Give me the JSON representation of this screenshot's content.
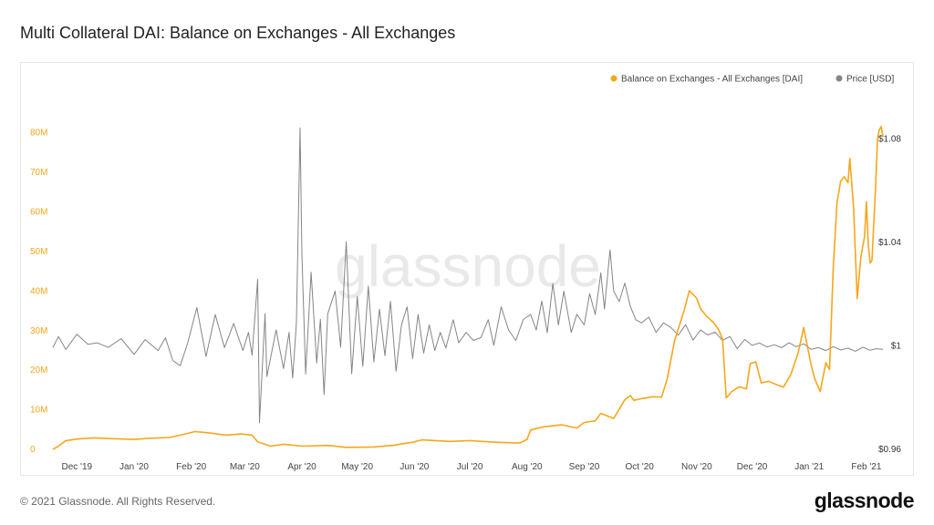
{
  "title": "Multi Collateral DAI: Balance on Exchanges - All Exchanges",
  "footer": {
    "copyright": "© 2021 Glassnode. All Rights Reserved.",
    "logo": "glassnode"
  },
  "watermark": "glassnode",
  "colors": {
    "balance": "#f7a61c",
    "price": "#858585",
    "grid": "#ececec",
    "left_axis": "#f7a61c",
    "right_axis": "#333333"
  },
  "chart_data": {
    "type": "line",
    "title": "Multi Collateral DAI: Balance on Exchanges - All Exchanges",
    "x_ticks": [
      "Dec '19",
      "Jan '20",
      "Feb '20",
      "Mar '20",
      "Apr '20",
      "May '20",
      "Jun '20",
      "Jul '20",
      "Aug '20",
      "Sep '20",
      "Oct '20",
      "Nov '20",
      "Dec '20",
      "Jan '21",
      "Feb '21"
    ],
    "x_range": [
      "2019-11-18",
      "2021-02-05"
    ],
    "left_axis": {
      "ticks": [
        "0",
        "10M",
        "20M",
        "30M",
        "40M",
        "50M",
        "60M",
        "70M",
        "80M"
      ],
      "range": [
        0,
        85000000
      ]
    },
    "right_axis": {
      "ticks": [
        "$0.96",
        "$1",
        "$1.04",
        "$1.08"
      ],
      "range": [
        0.96,
        1.09
      ]
    },
    "grid": false,
    "legend_position": "top-right",
    "series": [
      {
        "name": "Balance on Exchanges - All Exchanges [DAI]",
        "axis": "left",
        "points": [
          [
            "2019-11-18",
            0
          ],
          [
            "2019-11-21",
            800000
          ],
          [
            "2019-11-25",
            2200000
          ],
          [
            "2019-12-01",
            2600000
          ],
          [
            "2019-12-10",
            2900000
          ],
          [
            "2019-12-20",
            2700000
          ],
          [
            "2020-01-01",
            2500000
          ],
          [
            "2020-01-10",
            2800000
          ],
          [
            "2020-01-20",
            3000000
          ],
          [
            "2020-01-28",
            3800000
          ],
          [
            "2020-02-03",
            4500000
          ],
          [
            "2020-02-10",
            4200000
          ],
          [
            "2020-02-20",
            3600000
          ],
          [
            "2020-02-28",
            3900000
          ],
          [
            "2020-03-05",
            3600000
          ],
          [
            "2020-03-08",
            1900000
          ],
          [
            "2020-03-15",
            800000
          ],
          [
            "2020-03-22",
            1300000
          ],
          [
            "2020-04-01",
            800000
          ],
          [
            "2020-04-15",
            1000000
          ],
          [
            "2020-04-25",
            500000
          ],
          [
            "2020-05-10",
            600000
          ],
          [
            "2020-05-20",
            1000000
          ],
          [
            "2020-05-31",
            1800000
          ],
          [
            "2020-06-05",
            2400000
          ],
          [
            "2020-06-20",
            2000000
          ],
          [
            "2020-07-01",
            2200000
          ],
          [
            "2020-07-15",
            1800000
          ],
          [
            "2020-07-28",
            1600000
          ],
          [
            "2020-08-01",
            2500000
          ],
          [
            "2020-08-03",
            4900000
          ],
          [
            "2020-08-10",
            5700000
          ],
          [
            "2020-08-20",
            6200000
          ],
          [
            "2020-08-28",
            5400000
          ],
          [
            "2020-09-01",
            6800000
          ],
          [
            "2020-09-07",
            7200000
          ],
          [
            "2020-09-10",
            9100000
          ],
          [
            "2020-09-17",
            7800000
          ],
          [
            "2020-09-23",
            12500000
          ],
          [
            "2020-09-26",
            13600000
          ],
          [
            "2020-09-28",
            12400000
          ],
          [
            "2020-10-02",
            12800000
          ],
          [
            "2020-10-08",
            13300000
          ],
          [
            "2020-10-13",
            13200000
          ],
          [
            "2020-10-16",
            17800000
          ],
          [
            "2020-10-20",
            27500000
          ],
          [
            "2020-10-25",
            34800000
          ],
          [
            "2020-10-28",
            40100000
          ],
          [
            "2020-11-01",
            38200000
          ],
          [
            "2020-11-03",
            35600000
          ],
          [
            "2020-11-06",
            33800000
          ],
          [
            "2020-11-10",
            32100000
          ],
          [
            "2020-11-13",
            30200000
          ],
          [
            "2020-11-15",
            27800000
          ],
          [
            "2020-11-17",
            13000000
          ],
          [
            "2020-11-20",
            14600000
          ],
          [
            "2020-11-24",
            15800000
          ],
          [
            "2020-11-28",
            15300000
          ],
          [
            "2020-11-30",
            21700000
          ],
          [
            "2020-12-03",
            22100000
          ],
          [
            "2020-12-06",
            16800000
          ],
          [
            "2020-12-10",
            17200000
          ],
          [
            "2020-12-14",
            16400000
          ],
          [
            "2020-12-18",
            15700000
          ],
          [
            "2020-12-22",
            18900000
          ],
          [
            "2020-12-26",
            24400000
          ],
          [
            "2020-12-29",
            30800000
          ],
          [
            "2021-01-02",
            21400000
          ],
          [
            "2021-01-04",
            17800000
          ],
          [
            "2021-01-07",
            14600000
          ],
          [
            "2021-01-10",
            21900000
          ],
          [
            "2021-01-12",
            20200000
          ],
          [
            "2021-01-14",
            45800000
          ],
          [
            "2021-01-16",
            62200000
          ],
          [
            "2021-01-18",
            67800000
          ],
          [
            "2021-01-20",
            68900000
          ],
          [
            "2021-01-22",
            67400000
          ],
          [
            "2021-01-23",
            73500000
          ],
          [
            "2021-01-25",
            61200000
          ],
          [
            "2021-01-27",
            38100000
          ],
          [
            "2021-01-29",
            48600000
          ],
          [
            "2021-01-31",
            53800000
          ],
          [
            "2021-02-01",
            62600000
          ],
          [
            "2021-02-02",
            51800000
          ],
          [
            "2021-02-03",
            47100000
          ],
          [
            "2021-02-04",
            47700000
          ],
          [
            "2021-02-05",
            57200000
          ],
          [
            "2021-02-06",
            66400000
          ],
          [
            "2021-02-07",
            78400000
          ],
          [
            "2021-02-08",
            80800000
          ],
          [
            "2021-02-09",
            81600000
          ],
          [
            "2021-02-10",
            78900000
          ]
        ]
      },
      {
        "name": "Price [USD]",
        "axis": "right",
        "points": [
          [
            "2019-11-18",
            0.9993
          ],
          [
            "2019-11-21",
            1.0036
          ],
          [
            "2019-11-25",
            0.9986
          ],
          [
            "2019-12-01",
            1.0045
          ],
          [
            "2019-12-07",
            1.0006
          ],
          [
            "2019-12-12",
            1.0012
          ],
          [
            "2019-12-18",
            0.9994
          ],
          [
            "2019-12-25",
            1.0028
          ],
          [
            "2020-01-01",
            0.9967
          ],
          [
            "2020-01-07",
            1.0024
          ],
          [
            "2020-01-14",
            0.9982
          ],
          [
            "2020-01-18",
            1.0031
          ],
          [
            "2020-01-22",
            0.9943
          ],
          [
            "2020-01-26",
            0.9923
          ],
          [
            "2020-01-30",
            1.0009
          ],
          [
            "2020-02-04",
            1.0148
          ],
          [
            "2020-02-09",
            0.9959
          ],
          [
            "2020-02-14",
            1.0121
          ],
          [
            "2020-02-19",
            0.9993
          ],
          [
            "2020-02-24",
            1.0087
          ],
          [
            "2020-02-29",
            0.9982
          ],
          [
            "2020-03-03",
            1.0052
          ],
          [
            "2020-03-05",
            0.9964
          ],
          [
            "2020-03-08",
            1.0257
          ],
          [
            "2020-03-09",
            0.9703
          ],
          [
            "2020-03-12",
            1.0124
          ],
          [
            "2020-03-13",
            0.9881
          ],
          [
            "2020-03-18",
            1.0062
          ],
          [
            "2020-03-22",
            0.9912
          ],
          [
            "2020-03-25",
            1.0052
          ],
          [
            "2020-03-27",
            0.9876
          ],
          [
            "2020-03-29",
            1.0092
          ],
          [
            "2020-03-31",
            1.0843
          ],
          [
            "2020-04-01",
            1.0354
          ],
          [
            "2020-04-03",
            0.9891
          ],
          [
            "2020-04-06",
            1.0284
          ],
          [
            "2020-04-09",
            0.9934
          ],
          [
            "2020-04-11",
            1.0103
          ],
          [
            "2020-04-13",
            0.9812
          ],
          [
            "2020-04-15",
            1.0124
          ],
          [
            "2020-04-19",
            1.0212
          ],
          [
            "2020-04-22",
            0.9995
          ],
          [
            "2020-04-25",
            1.0403
          ],
          [
            "2020-04-28",
            0.9892
          ],
          [
            "2020-05-01",
            1.0191
          ],
          [
            "2020-05-04",
            0.9921
          ],
          [
            "2020-05-07",
            1.0231
          ],
          [
            "2020-05-10",
            0.9938
          ],
          [
            "2020-05-13",
            1.0142
          ],
          [
            "2020-05-16",
            0.9962
          ],
          [
            "2020-05-19",
            1.0172
          ],
          [
            "2020-05-22",
            0.9902
          ],
          [
            "2020-05-25",
            1.0082
          ],
          [
            "2020-05-28",
            1.0151
          ],
          [
            "2020-05-31",
            0.9951
          ],
          [
            "2020-06-03",
            1.0121
          ],
          [
            "2020-06-06",
            0.9972
          ],
          [
            "2020-06-09",
            1.0081
          ],
          [
            "2020-06-12",
            0.9982
          ],
          [
            "2020-06-15",
            1.0052
          ],
          [
            "2020-06-18",
            0.9992
          ],
          [
            "2020-06-22",
            1.0101
          ],
          [
            "2020-06-25",
            1.0012
          ],
          [
            "2020-06-29",
            1.0052
          ],
          [
            "2020-07-03",
            1.0021
          ],
          [
            "2020-07-07",
            1.0032
          ],
          [
            "2020-07-11",
            1.0101
          ],
          [
            "2020-07-14",
            1.0002
          ],
          [
            "2020-07-18",
            1.0151
          ],
          [
            "2020-07-22",
            1.0061
          ],
          [
            "2020-07-26",
            1.0021
          ],
          [
            "2020-07-30",
            1.0102
          ],
          [
            "2020-08-03",
            1.0121
          ],
          [
            "2020-08-06",
            1.0061
          ],
          [
            "2020-08-09",
            1.0173
          ],
          [
            "2020-08-12",
            1.0051
          ],
          [
            "2020-08-15",
            1.0241
          ],
          [
            "2020-08-18",
            1.0081
          ],
          [
            "2020-08-21",
            1.0211
          ],
          [
            "2020-08-25",
            1.0052
          ],
          [
            "2020-08-28",
            1.0122
          ],
          [
            "2020-09-01",
            1.0081
          ],
          [
            "2020-09-04",
            1.0202
          ],
          [
            "2020-09-07",
            1.0121
          ],
          [
            "2020-09-10",
            1.0282
          ],
          [
            "2020-09-12",
            1.0143
          ],
          [
            "2020-09-15",
            1.0371
          ],
          [
            "2020-09-17",
            1.0212
          ],
          [
            "2020-09-20",
            1.0171
          ],
          [
            "2020-09-23",
            1.0243
          ],
          [
            "2020-09-26",
            1.0153
          ],
          [
            "2020-09-29",
            1.0101
          ],
          [
            "2020-10-02",
            1.0089
          ],
          [
            "2020-10-06",
            1.0111
          ],
          [
            "2020-10-10",
            1.0052
          ],
          [
            "2020-10-14",
            1.0089
          ],
          [
            "2020-10-18",
            1.0071
          ],
          [
            "2020-10-22",
            1.0041
          ],
          [
            "2020-10-26",
            1.0082
          ],
          [
            "2020-10-30",
            1.0022
          ],
          [
            "2020-11-03",
            1.0061
          ],
          [
            "2020-11-07",
            1.0042
          ],
          [
            "2020-11-11",
            1.0053
          ],
          [
            "2020-11-15",
            1.0021
          ],
          [
            "2020-11-19",
            1.0036
          ],
          [
            "2020-11-23",
            0.9989
          ],
          [
            "2020-11-27",
            1.0025
          ],
          [
            "2020-12-01",
            1.0002
          ],
          [
            "2020-12-05",
            1.0011
          ],
          [
            "2020-12-09",
            0.9996
          ],
          [
            "2020-12-13",
            1.0004
          ],
          [
            "2020-12-17",
            0.9993
          ],
          [
            "2020-12-21",
            1.0012
          ],
          [
            "2020-12-25",
            0.9997
          ],
          [
            "2020-12-29",
            1.0008
          ],
          [
            "2021-01-02",
            0.9987
          ],
          [
            "2021-01-06",
            0.9993
          ],
          [
            "2021-01-10",
            0.9982
          ],
          [
            "2021-01-14",
            0.9997
          ],
          [
            "2021-01-18",
            0.9984
          ],
          [
            "2021-01-22",
            0.9991
          ],
          [
            "2021-01-26",
            0.9979
          ],
          [
            "2021-01-30",
            0.9995
          ],
          [
            "2021-02-03",
            0.9983
          ],
          [
            "2021-02-06",
            0.9989
          ],
          [
            "2021-02-10",
            0.9987
          ]
        ]
      }
    ]
  }
}
